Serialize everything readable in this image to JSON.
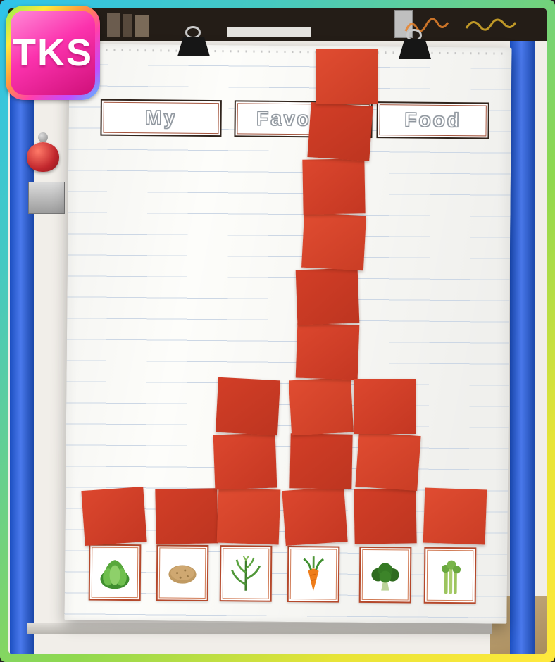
{
  "logo": {
    "text": "TKS"
  },
  "title": {
    "words": [
      "My",
      "Favorite",
      "Food"
    ]
  },
  "chart_data": {
    "type": "bar",
    "title": "My Favorite Food",
    "categories": [
      "lettuce",
      "potato",
      "corn",
      "carrot",
      "broccoli",
      "celery"
    ],
    "values": [
      1,
      1,
      3,
      9,
      3,
      1
    ],
    "ylim": [
      0,
      9
    ],
    "square_color": "#d5402b",
    "legend": "none",
    "grid": "ruled chart paper lines"
  },
  "icons": [
    "lettuce-icon",
    "potato-icon",
    "corn-icon",
    "carrot-icon",
    "broccoli-icon",
    "celery-icon"
  ]
}
